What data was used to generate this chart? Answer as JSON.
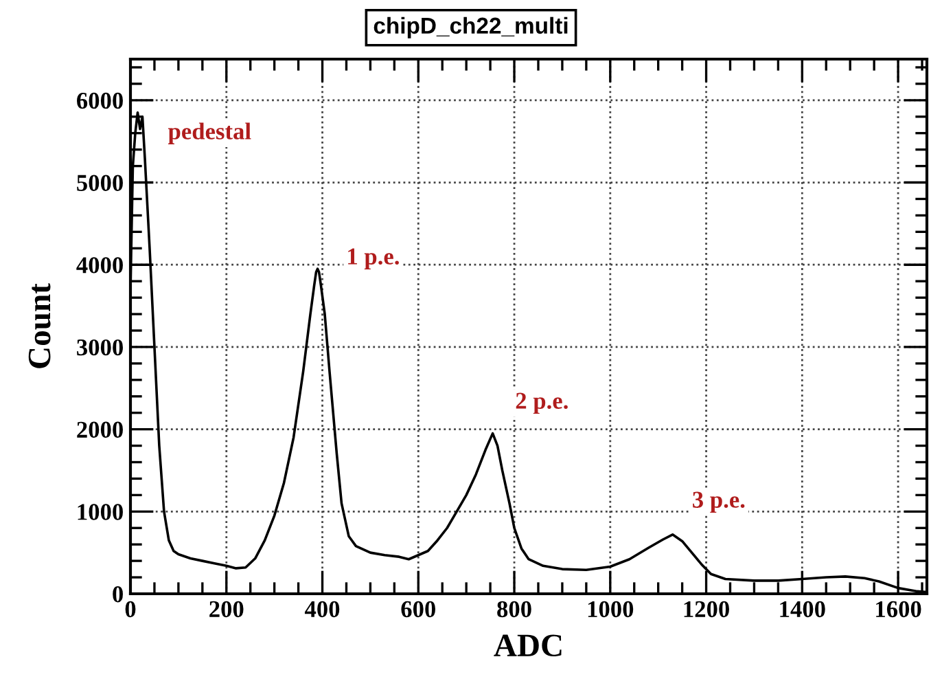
{
  "chart_data": {
    "type": "line",
    "title": "chipD_ch22_multi",
    "xlabel": "ADC",
    "ylabel": "Count",
    "x": [
      0,
      5,
      10,
      15,
      20,
      25,
      30,
      40,
      50,
      60,
      70,
      80,
      90,
      100,
      125,
      150,
      175,
      200,
      220,
      240,
      260,
      280,
      300,
      320,
      340,
      360,
      375,
      383,
      387,
      390,
      393,
      397,
      405,
      415,
      430,
      440,
      455,
      470,
      500,
      530,
      560,
      580,
      600,
      620,
      640,
      660,
      680,
      700,
      720,
      740,
      755,
      765,
      775,
      790,
      800,
      815,
      830,
      860,
      900,
      950,
      1000,
      1040,
      1080,
      1110,
      1130,
      1150,
      1170,
      1190,
      1210,
      1240,
      1300,
      1350,
      1400,
      1450,
      1490,
      1530,
      1560,
      1600,
      1640,
      1660
    ],
    "series": [
      {
        "color": "#000000",
        "values": [
          3700,
          5200,
          5600,
          5850,
          5650,
          5800,
          5300,
          4200,
          3000,
          1800,
          1000,
          650,
          520,
          480,
          430,
          400,
          370,
          340,
          310,
          320,
          430,
          650,
          950,
          1350,
          1900,
          2700,
          3400,
          3750,
          3910,
          3950,
          3910,
          3750,
          3400,
          2700,
          1700,
          1100,
          700,
          580,
          500,
          470,
          450,
          420,
          470,
          520,
          650,
          800,
          1000,
          1200,
          1450,
          1750,
          1950,
          1800,
          1500,
          1100,
          800,
          550,
          420,
          340,
          300,
          290,
          330,
          420,
          560,
          660,
          720,
          640,
          500,
          360,
          240,
          180,
          160,
          160,
          180,
          200,
          210,
          190,
          150,
          70,
          30,
          20
        ]
      }
    ],
    "xlim": [
      0,
      1660
    ],
    "ylim": [
      0,
      6500
    ],
    "xticks": [
      0,
      200,
      400,
      600,
      800,
      1000,
      1200,
      1400,
      1600
    ],
    "yticks": [
      0,
      1000,
      2000,
      3000,
      4000,
      5000,
      6000
    ],
    "grid": true,
    "legend": false,
    "marker": "none",
    "line_style": "solid",
    "annotations": [
      "pedestal",
      "1 p.e.",
      "2 p.e.",
      "3 p.e."
    ]
  }
}
